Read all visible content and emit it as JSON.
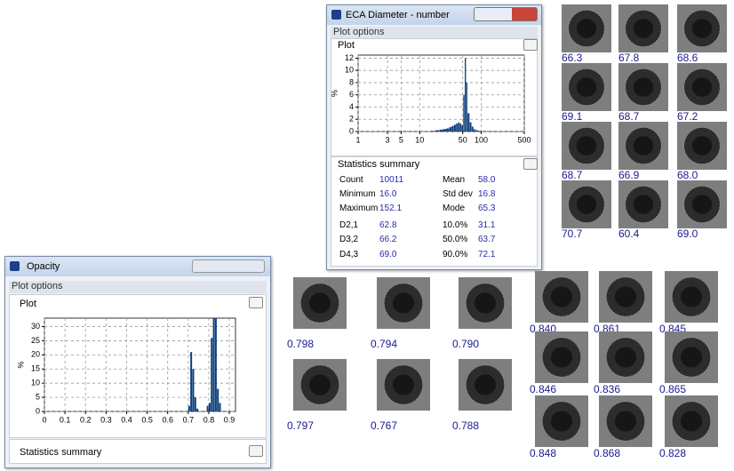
{
  "eca_window": {
    "title": "ECA Diameter - number",
    "plot_options": "Plot options",
    "plot_label": "Plot",
    "chart": {
      "type": "histogram",
      "ylabel": "%",
      "xscale": "log",
      "xlim": [
        1,
        500
      ],
      "xticks": [
        1,
        3,
        5,
        10,
        50,
        100,
        500
      ],
      "ylim": [
        0,
        12.5
      ],
      "yticks": [
        0,
        2,
        4,
        6,
        8,
        10,
        12
      ],
      "grid": true,
      "color": "#0d3f7a",
      "bins": [
        15,
        18,
        21,
        24,
        27,
        30,
        33,
        36,
        39,
        42,
        45,
        48,
        51,
        54,
        57,
        60,
        65,
        70,
        75,
        80,
        90,
        100,
        120,
        150
      ],
      "values": [
        0.1,
        0.2,
        0.3,
        0.4,
        0.5,
        0.7,
        0.9,
        1.1,
        1.3,
        1.5,
        1.3,
        1.0,
        6,
        12,
        8,
        3,
        1.5,
        0.8,
        0.4,
        0.2,
        0.1,
        0.05,
        0.02
      ]
    },
    "stats_title": "Statistics summary",
    "stats": [
      [
        "Count",
        "10011",
        "Mean",
        "58.0"
      ],
      [
        "Minimum",
        "16.0",
        "Std dev",
        "16.8"
      ],
      [
        "Maximum",
        "152.1",
        "Mode",
        "65.3"
      ],
      [
        "D2,1",
        "62.8",
        "10.0%",
        "31.1"
      ],
      [
        "D3,2",
        "66.2",
        "50.0%",
        "63.7"
      ],
      [
        "D4,3",
        "69.0",
        "90.0%",
        "72.1"
      ]
    ]
  },
  "opacity_window": {
    "title": "Opacity",
    "plot_options": "Plot options",
    "plot_label": "Plot",
    "chart": {
      "type": "histogram",
      "ylabel": "%",
      "xscale": "linear",
      "xlim": [
        0,
        0.93
      ],
      "xticks": [
        0,
        0.1,
        0.2,
        0.3,
        0.4,
        0.5,
        0.6,
        0.7,
        0.8,
        0.9
      ],
      "ylim": [
        0,
        33
      ],
      "yticks": [
        0,
        5,
        10,
        15,
        20,
        25,
        30
      ],
      "grid": true,
      "color": "#0d3f7a",
      "bins": [
        0.7,
        0.71,
        0.72,
        0.73,
        0.74,
        0.75,
        0.76,
        0.77,
        0.78,
        0.79,
        0.8,
        0.81,
        0.82,
        0.83,
        0.84,
        0.85,
        0.86,
        0.87
      ],
      "values": [
        2,
        21,
        15,
        5,
        1,
        0,
        0,
        0,
        0,
        2,
        3,
        26,
        33,
        33,
        8,
        3,
        0
      ]
    },
    "stats_title": "Statistics summary"
  },
  "eca_particles": [
    "66.3",
    "67.8",
    "68.6",
    "69.1",
    "68.7",
    "67.2",
    "68.7",
    "66.9",
    "68.0",
    "70.7",
    "60.4",
    "69.0"
  ],
  "opacity_particles_left": [
    "0.798",
    "0.794",
    "0.790",
    "0.797",
    "0.767",
    "0.788"
  ],
  "opacity_particles_right": [
    "0.840",
    "0.861",
    "0.845",
    "0.846",
    "0.836",
    "0.865",
    "0.848",
    "0.868",
    "0.828"
  ]
}
